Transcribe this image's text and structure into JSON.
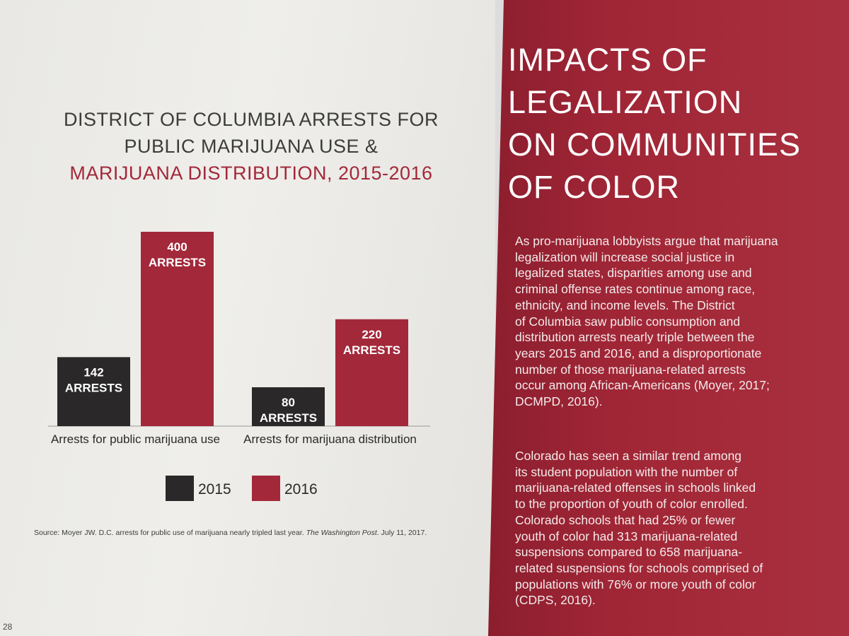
{
  "left": {
    "chart_title": {
      "line1": "DISTRICT OF COLUMBIA ARRESTS FOR",
      "line2": "PUBLIC MARIJUANA USE &",
      "line3": "MARIJUANA DISTRIBUTION, 2015-2016"
    },
    "source": {
      "prefix": "Source: Moyer JW. D.C. arrests for public use of marijuana nearly tripled last year.",
      "publication": "The Washington Post",
      "suffix": ". July 11, 2017."
    },
    "page_number": "28"
  },
  "chart_data": {
    "type": "bar",
    "title": "DISTRICT OF COLUMBIA ARRESTS FOR PUBLIC MARIJUANA USE & MARIJUANA DISTRIBUTION, 2015-2016",
    "categories": [
      "Arrests for public marijuana use",
      "Arrests for marijuana distribution"
    ],
    "series": [
      {
        "name": "2015",
        "color": "#2a2828",
        "values": [
          142,
          80
        ],
        "labels": [
          [
            "142",
            "ARRESTS"
          ],
          [
            "80",
            "ARRESTS"
          ]
        ]
      },
      {
        "name": "2016",
        "color": "#a3283a",
        "values": [
          400,
          220
        ],
        "labels": [
          [
            "400",
            "ARRESTS"
          ],
          [
            "220",
            "ARRESTS"
          ]
        ]
      }
    ],
    "ylim": [
      0,
      400
    ],
    "xlabel": "",
    "ylabel": "",
    "grid": false,
    "legend": "bottom"
  },
  "right": {
    "heading": {
      "line1": "IMPACTS OF",
      "line2": "LEGALIZATION",
      "line3": "ON COMMUNITIES",
      "line4": "OF COLOR"
    },
    "paragraph1": [
      "As pro-marijuana lobbyists argue that marijuana",
      "legalization will increase social justice in",
      "legalized states, disparities among use and",
      "criminal offense rates continue among race,",
      "ethnicity, and income levels. The District",
      "of Columbia saw public consumption and",
      "distribution arrests nearly triple between the",
      "years 2015 and 2016, and a disproportionate",
      "number of those marijuana-related arrests",
      "occur among African-Americans (Moyer, 2017;",
      "DCMPD, 2016)."
    ],
    "paragraph2": [
      "Colorado has seen a similar trend among",
      "its student population with the number of",
      "marijuana-related offenses in schools linked",
      "to the proportion of youth of color enrolled.",
      "Colorado schools that had 25% or fewer",
      "youth of color had 313 marijuana-related",
      "suspensions compared to 658 marijuana-",
      "related suspensions for schools comprised of",
      "populations with 76% or more youth of color",
      "(CDPS, 2016)."
    ]
  }
}
